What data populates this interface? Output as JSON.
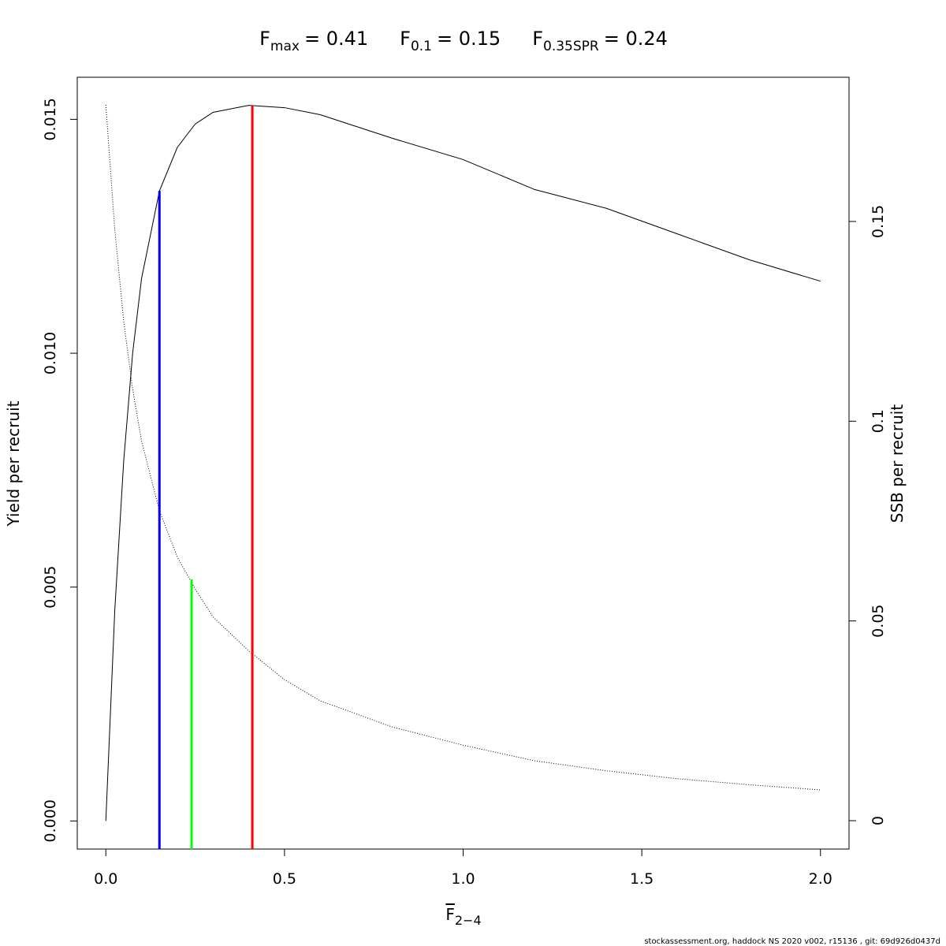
{
  "chart_data": {
    "type": "line",
    "title_parts": [
      {
        "symbol": "F",
        "subscript": "max",
        "text": "= 0.41"
      },
      {
        "symbol": "F",
        "subscript": "0.1",
        "text": "= 0.15"
      },
      {
        "symbol": "F",
        "subscript": "0.35SPR",
        "text": "= 0.24"
      }
    ],
    "x_label": {
      "symbol": "F",
      "subscript": "2−4"
    },
    "y_label": "Yield per recruit",
    "y2_label": "SSB per recruit",
    "footer": "stockassessment.org, haddock NS 2020 v002, r15136 , git: 69d926d0437d",
    "x": [
      0,
      0.025,
      0.05,
      0.075,
      0.1,
      0.15,
      0.2,
      0.25,
      0.3,
      0.4,
      0.5,
      0.6,
      0.8,
      1.0,
      1.2,
      1.4,
      1.6,
      1.8,
      2.0
    ],
    "series": [
      {
        "values": [
          0,
          0.0045,
          0.0077,
          0.01,
          0.0116,
          0.01347,
          0.0144,
          0.0149,
          0.01515,
          0.0153,
          0.01525,
          0.0151,
          0.0146,
          0.01414,
          0.0135,
          0.0131,
          0.01255,
          0.012,
          0.01154
        ],
        "color": "#000000",
        "dash": "solid"
      },
      {
        "values": [
          0.1792,
          0.148,
          0.125,
          0.108,
          0.095,
          0.0776,
          0.066,
          0.058,
          0.051,
          0.0425,
          0.0353,
          0.03,
          0.0235,
          0.0189,
          0.015,
          0.0125,
          0.0105,
          0.009,
          0.0077
        ],
        "color": "#000000",
        "dash": "dotted",
        "axis": "y2"
      }
    ],
    "reference_lines": [
      {
        "x": 0.15,
        "y": 0.01347,
        "color": "#0000ff"
      },
      {
        "x": 0.24,
        "y": 0.0604,
        "axis": "y2",
        "color": "#00ff00"
      },
      {
        "x": 0.41,
        "y": 0.0153,
        "color": "#ff0000"
      }
    ],
    "xlim": [
      -0.08,
      2.08
    ],
    "xticks": [
      {
        "value": 0,
        "label": "0.0"
      },
      {
        "value": 0.5,
        "label": "0.5"
      },
      {
        "value": 1,
        "label": "1.0"
      },
      {
        "value": 1.5,
        "label": "1.5"
      },
      {
        "value": 2,
        "label": "2.0"
      }
    ],
    "ylim": [
      -0.0006,
      0.0159
    ],
    "yticks": [
      {
        "value": 0,
        "label": "0.000"
      },
      {
        "value": 0.005,
        "label": "0.005"
      },
      {
        "value": 0.01,
        "label": "0.010"
      },
      {
        "value": 0.015,
        "label": "0.015"
      }
    ],
    "y2lim": [
      -0.0071,
      0.1861
    ],
    "y2ticks": [
      0,
      0.05,
      0.1,
      0.15
    ]
  }
}
